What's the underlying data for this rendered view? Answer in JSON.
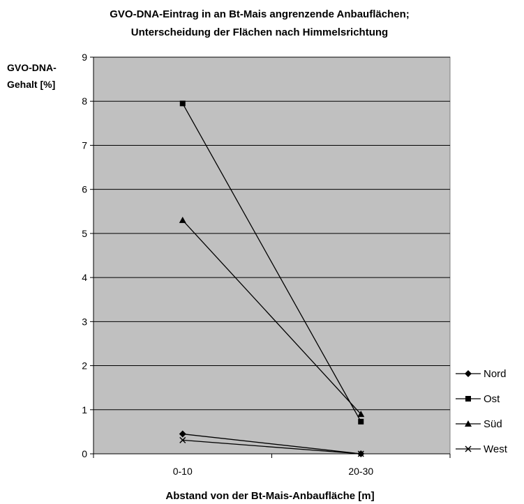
{
  "chart_data": {
    "type": "line",
    "title_lines": [
      "GVO-DNA-Eintrag in an Bt-Mais angrenzende Anbauflächen;",
      "Unterscheidung der Flächen nach Himmelsrichtung"
    ],
    "ylabel_lines": [
      "GVO-DNA-",
      "Gehalt [%]"
    ],
    "xlabel": "Abstand von der Bt-Mais-Anbaufläche [m]",
    "categories": [
      "0-10",
      "20-30"
    ],
    "ylim": [
      0,
      9
    ],
    "yticks": [
      "0",
      "1",
      "2",
      "3",
      "4",
      "5",
      "6",
      "7",
      "8",
      "9"
    ],
    "grid": true,
    "plot_background": "#c0c0c0",
    "line_color": "#000000",
    "legend_position": "right",
    "series": [
      {
        "name": "Nord",
        "marker": "diamond",
        "values": [
          0.45,
          0.0
        ]
      },
      {
        "name": "Ost",
        "marker": "square",
        "values": [
          7.95,
          0.73
        ]
      },
      {
        "name": "Süd",
        "marker": "triangle",
        "values": [
          5.3,
          0.9
        ]
      },
      {
        "name": "West",
        "marker": "x",
        "values": [
          0.31,
          0.0
        ]
      }
    ]
  }
}
